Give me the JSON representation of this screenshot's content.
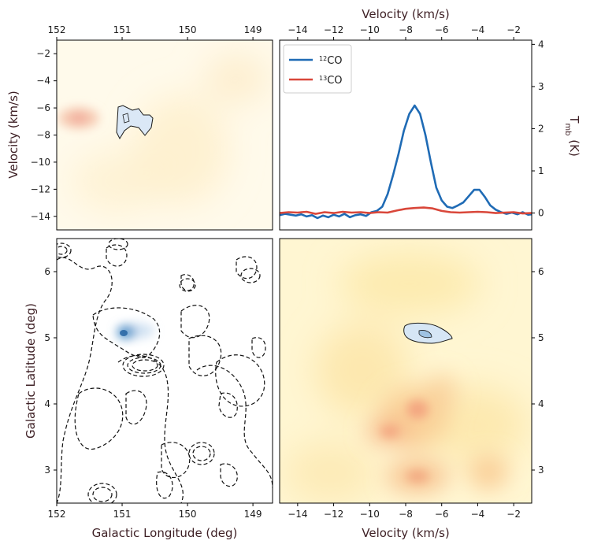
{
  "chart_data": [
    {
      "type": "contour",
      "panel": "top-left",
      "description_kind": "longitude-velocity map",
      "xlabel": "",
      "ylabel": "Velocity (km/s)",
      "xlim": [
        152,
        148.7
      ],
      "ylim": [
        -15,
        -1
      ],
      "x_ticks": [
        152,
        151,
        150,
        149
      ],
      "x_tick_labels": [
        "152",
        "151",
        "150",
        "149"
      ],
      "y_ticks": [
        -2,
        -4,
        -6,
        -8,
        -10,
        -12,
        -14
      ],
      "y_tick_labels": [
        "−2",
        "−4",
        "−6",
        "−8",
        "−10",
        "−12",
        "−14"
      ],
      "features": [
        {
          "name": "12CO emission peak",
          "lon": 151.65,
          "vel": -6.8
        },
        {
          "name": "13CO clump",
          "lon": 150.95,
          "vel": -7.0
        }
      ]
    },
    {
      "type": "line",
      "panel": "top-right",
      "description_kind": "average spectrum",
      "xlabel": "Velocity (km/s)",
      "ylabel": "T_mb (K)",
      "ylabel_main": "T",
      "ylabel_sub": "mb",
      "ylabel_rest": " (K)",
      "xlim": [
        -15,
        -1
      ],
      "ylim": [
        -0.4,
        4.1
      ],
      "x_ticks": [
        -14,
        -12,
        -10,
        -8,
        -6,
        -4,
        -2
      ],
      "x_tick_labels": [
        "−14",
        "−12",
        "−10",
        "−8",
        "−6",
        "−4",
        "−2"
      ],
      "y_ticks": [
        0,
        1,
        2,
        3,
        4
      ],
      "y_tick_labels": [
        "0",
        "1",
        "2",
        "3",
        "4"
      ],
      "legend_position": "top-left",
      "series": [
        {
          "name": "12CO",
          "label_sup": "12",
          "label_base": "CO",
          "color": "#1f6bb5",
          "x": [
            -15.0,
            -14.7,
            -14.4,
            -14.1,
            -13.8,
            -13.5,
            -13.2,
            -12.9,
            -12.6,
            -12.3,
            -12.0,
            -11.7,
            -11.4,
            -11.1,
            -10.8,
            -10.5,
            -10.2,
            -9.9,
            -9.6,
            -9.3,
            -9.0,
            -8.7,
            -8.4,
            -8.1,
            -7.8,
            -7.5,
            -7.2,
            -6.9,
            -6.6,
            -6.3,
            -6.0,
            -5.7,
            -5.4,
            -5.1,
            -4.8,
            -4.5,
            -4.2,
            -3.9,
            -3.6,
            -3.3,
            -3.0,
            -2.7,
            -2.4,
            -2.1,
            -1.8,
            -1.5,
            -1.2,
            -1.0
          ],
          "y": [
            -0.05,
            -0.02,
            -0.04,
            -0.06,
            -0.03,
            -0.08,
            -0.05,
            -0.12,
            -0.06,
            -0.1,
            -0.04,
            -0.08,
            -0.02,
            -0.1,
            -0.05,
            -0.03,
            -0.07,
            0.02,
            0.05,
            0.15,
            0.45,
            0.9,
            1.4,
            1.95,
            2.35,
            2.55,
            2.35,
            1.85,
            1.2,
            0.6,
            0.3,
            0.15,
            0.12,
            0.18,
            0.25,
            0.4,
            0.55,
            0.55,
            0.38,
            0.18,
            0.08,
            0.02,
            -0.02,
            0.01,
            -0.03,
            0.02,
            -0.04,
            -0.03
          ]
        },
        {
          "name": "13CO",
          "label_sup": "13",
          "label_base": "CO",
          "color": "#d9473a",
          "x": [
            -15.0,
            -14.5,
            -14.0,
            -13.5,
            -13.0,
            -12.5,
            -12.0,
            -11.5,
            -11.0,
            -10.5,
            -10.0,
            -9.5,
            -9.0,
            -8.5,
            -8.0,
            -7.5,
            -7.0,
            -6.5,
            -6.0,
            -5.5,
            -5.0,
            -4.5,
            -4.0,
            -3.5,
            -3.0,
            -2.5,
            -2.0,
            -1.5,
            -1.0
          ],
          "y": [
            0.0,
            0.02,
            0.01,
            0.03,
            -0.02,
            0.02,
            0.0,
            0.03,
            0.01,
            0.02,
            0.0,
            0.02,
            0.01,
            0.06,
            0.1,
            0.12,
            0.13,
            0.11,
            0.05,
            0.02,
            0.01,
            0.02,
            0.03,
            0.02,
            0.0,
            0.01,
            0.02,
            -0.01,
            0.0
          ]
        }
      ]
    },
    {
      "type": "contour",
      "panel": "bottom-left",
      "description_kind": "integrated intensity map",
      "xlabel": "Galactic Longitude (deg)",
      "ylabel": "Galactic Latitude (deg)",
      "xlim": [
        152,
        148.7
      ],
      "ylim": [
        2.5,
        6.5
      ],
      "x_ticks": [
        152,
        151,
        150,
        149
      ],
      "x_tick_labels": [
        "152",
        "151",
        "150",
        "149"
      ],
      "y_ticks": [
        3,
        4,
        5,
        6
      ],
      "y_tick_labels": [
        "3",
        "4",
        "5",
        "6"
      ],
      "features": [
        {
          "name": "13CO clump",
          "lon": 150.95,
          "lat": 5.08
        }
      ]
    },
    {
      "type": "contour",
      "panel": "bottom-right",
      "description_kind": "velocity-latitude map",
      "xlabel": "Velocity (km/s)",
      "ylabel": "",
      "xlim": [
        -15,
        -1
      ],
      "ylim": [
        2.5,
        6.5
      ],
      "x_ticks": [
        -14,
        -12,
        -10,
        -8,
        -6,
        -4,
        -2
      ],
      "x_tick_labels": [
        "−14",
        "−12",
        "−10",
        "−8",
        "−6",
        "−4",
        "−2"
      ],
      "y_ticks": [
        3,
        4,
        5,
        6
      ],
      "y_tick_labels": [
        "3",
        "4",
        "5",
        "6"
      ],
      "features": [
        {
          "name": "13CO clump",
          "vel": -6.8,
          "lat": 5.1
        }
      ]
    }
  ]
}
